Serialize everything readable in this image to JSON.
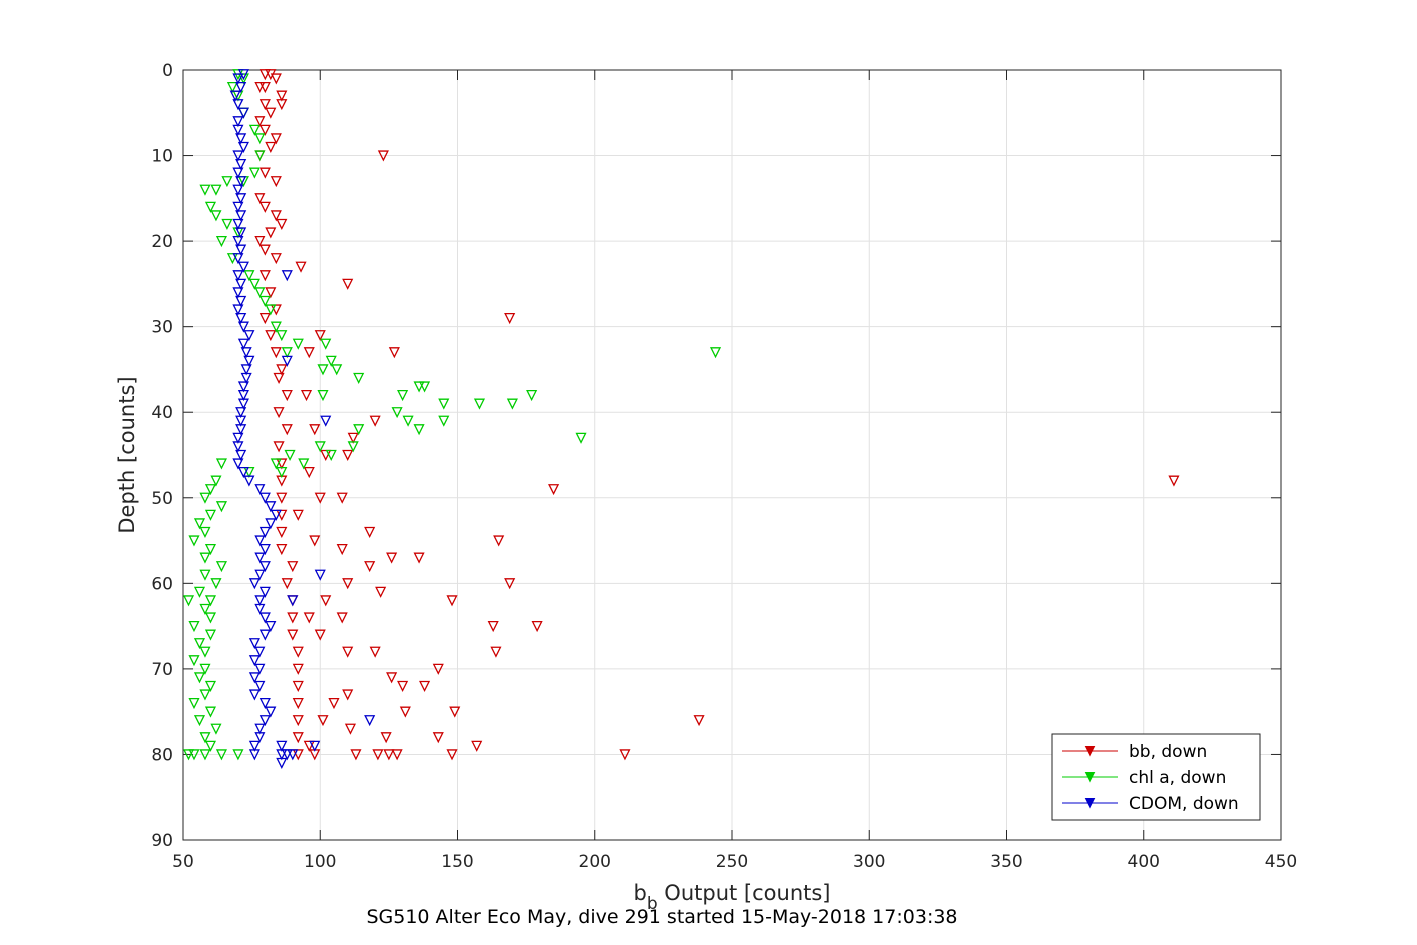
{
  "chart_data": {
    "type": "scatter",
    "xlabel_main": "b",
    "xlabel_sub": "b",
    "xlabel_rest": " Output [counts]",
    "ylabel": "Depth [counts]",
    "title": "SG510 Alter Eco May, dive 291 started 15-May-2018 17:03:38",
    "xlim": [
      50,
      450
    ],
    "ylim": [
      0,
      90
    ],
    "y_reversed": true,
    "xticks": [
      50,
      100,
      150,
      200,
      250,
      300,
      350,
      400,
      450
    ],
    "yticks": [
      0,
      10,
      20,
      30,
      40,
      50,
      60,
      70,
      80,
      90
    ],
    "grid": true,
    "legend_position": "bottom-right",
    "marker": "downward-triangle",
    "series": [
      {
        "name": "bb, down",
        "color": "#cc0000",
        "points": [
          [
            80,
            0.5
          ],
          [
            82,
            0.5
          ],
          [
            84,
            1
          ],
          [
            80,
            2
          ],
          [
            86,
            3
          ],
          [
            78,
            2
          ],
          [
            80,
            4
          ],
          [
            82,
            5
          ],
          [
            86,
            4
          ],
          [
            78,
            6
          ],
          [
            80,
            7
          ],
          [
            84,
            8
          ],
          [
            82,
            9
          ],
          [
            78,
            10
          ],
          [
            80,
            12
          ],
          [
            84,
            13
          ],
          [
            78,
            15
          ],
          [
            80,
            16
          ],
          [
            84,
            17
          ],
          [
            86,
            18
          ],
          [
            82,
            19
          ],
          [
            78,
            20
          ],
          [
            80,
            21
          ],
          [
            84,
            22
          ],
          [
            80,
            24
          ],
          [
            82,
            26
          ],
          [
            84,
            28
          ],
          [
            80,
            29
          ],
          [
            82,
            31
          ],
          [
            84,
            33
          ],
          [
            86,
            35
          ],
          [
            85,
            36
          ],
          [
            88,
            38
          ],
          [
            85,
            40
          ],
          [
            88,
            42
          ],
          [
            85,
            44
          ],
          [
            86,
            46
          ],
          [
            86,
            48
          ],
          [
            86,
            50
          ],
          [
            86,
            52
          ],
          [
            86,
            54
          ],
          [
            86,
            56
          ],
          [
            90,
            58
          ],
          [
            88,
            60
          ],
          [
            90,
            62
          ],
          [
            90,
            64
          ],
          [
            90,
            66
          ],
          [
            92,
            68
          ],
          [
            92,
            70
          ],
          [
            92,
            72
          ],
          [
            92,
            74
          ],
          [
            92,
            76
          ],
          [
            92,
            78
          ],
          [
            92,
            80
          ],
          [
            123,
            10
          ],
          [
            93,
            23
          ],
          [
            110,
            25
          ],
          [
            169,
            29
          ],
          [
            127,
            33
          ],
          [
            100,
            31
          ],
          [
            96,
            33
          ],
          [
            95,
            38
          ],
          [
            98,
            42
          ],
          [
            102,
            45
          ],
          [
            96,
            47
          ],
          [
            110,
            45
          ],
          [
            112,
            43
          ],
          [
            120,
            41
          ],
          [
            100,
            50
          ],
          [
            108,
            50
          ],
          [
            92,
            52
          ],
          [
            98,
            55
          ],
          [
            108,
            56
          ],
          [
            118,
            54
          ],
          [
            126,
            57
          ],
          [
            136,
            57
          ],
          [
            118,
            58
          ],
          [
            110,
            60
          ],
          [
            102,
            62
          ],
          [
            96,
            64
          ],
          [
            108,
            64
          ],
          [
            122,
            61
          ],
          [
            148,
            62
          ],
          [
            165,
            55
          ],
          [
            185,
            49
          ],
          [
            169,
            60
          ],
          [
            163,
            65
          ],
          [
            179,
            65
          ],
          [
            164,
            68
          ],
          [
            143,
            70
          ],
          [
            138,
            72
          ],
          [
            130,
            72
          ],
          [
            126,
            71
          ],
          [
            120,
            68
          ],
          [
            110,
            68
          ],
          [
            100,
            66
          ],
          [
            110,
            73
          ],
          [
            105,
            74
          ],
          [
            101,
            76
          ],
          [
            111,
            77
          ],
          [
            124,
            78
          ],
          [
            143,
            78
          ],
          [
            157,
            79
          ],
          [
            128,
            80
          ],
          [
            125,
            80
          ],
          [
            121,
            80
          ],
          [
            113,
            80
          ],
          [
            98,
            80
          ],
          [
            96,
            79
          ],
          [
            149,
            75
          ],
          [
            131,
            75
          ],
          [
            148,
            80
          ],
          [
            211,
            80
          ],
          [
            238,
            76
          ],
          [
            411,
            48
          ]
        ]
      },
      {
        "name": "chl a, down",
        "color": "#00cc00",
        "points": [
          [
            70,
            0.5
          ],
          [
            72,
            1
          ],
          [
            68,
            2
          ],
          [
            70,
            3
          ],
          [
            72,
            5
          ],
          [
            76,
            7
          ],
          [
            78,
            8
          ],
          [
            78,
            10
          ],
          [
            76,
            12
          ],
          [
            72,
            13
          ],
          [
            66,
            13
          ],
          [
            62,
            14
          ],
          [
            58,
            14
          ],
          [
            60,
            16
          ],
          [
            62,
            17
          ],
          [
            66,
            18
          ],
          [
            70,
            19
          ],
          [
            64,
            20
          ],
          [
            68,
            22
          ],
          [
            74,
            24
          ],
          [
            76,
            25
          ],
          [
            78,
            26
          ],
          [
            80,
            27
          ],
          [
            82,
            28
          ],
          [
            84,
            30
          ],
          [
            86,
            31
          ],
          [
            88,
            33
          ],
          [
            92,
            32
          ],
          [
            102,
            32
          ],
          [
            104,
            34
          ],
          [
            106,
            35
          ],
          [
            101,
            35
          ],
          [
            101,
            38
          ],
          [
            114,
            36
          ],
          [
            130,
            38
          ],
          [
            136,
            37
          ],
          [
            138,
            37
          ],
          [
            145,
            39
          ],
          [
            158,
            39
          ],
          [
            170,
            39
          ],
          [
            177,
            38
          ],
          [
            128,
            40
          ],
          [
            132,
            41
          ],
          [
            136,
            42
          ],
          [
            145,
            41
          ],
          [
            114,
            42
          ],
          [
            112,
            44
          ],
          [
            104,
            45
          ],
          [
            100,
            44
          ],
          [
            94,
            46
          ],
          [
            89,
            45
          ],
          [
            86,
            47
          ],
          [
            84,
            46
          ],
          [
            74,
            47
          ],
          [
            64,
            46
          ],
          [
            62,
            48
          ],
          [
            60,
            49
          ],
          [
            58,
            50
          ],
          [
            64,
            51
          ],
          [
            60,
            52
          ],
          [
            56,
            53
          ],
          [
            58,
            54
          ],
          [
            54,
            55
          ],
          [
            60,
            56
          ],
          [
            58,
            57
          ],
          [
            64,
            58
          ],
          [
            58,
            59
          ],
          [
            62,
            60
          ],
          [
            56,
            61
          ],
          [
            60,
            62
          ],
          [
            52,
            62
          ],
          [
            58,
            63
          ],
          [
            60,
            64
          ],
          [
            54,
            65
          ],
          [
            60,
            66
          ],
          [
            56,
            67
          ],
          [
            58,
            68
          ],
          [
            54,
            69
          ],
          [
            58,
            70
          ],
          [
            56,
            71
          ],
          [
            60,
            72
          ],
          [
            58,
            73
          ],
          [
            54,
            74
          ],
          [
            60,
            75
          ],
          [
            56,
            76
          ],
          [
            62,
            77
          ],
          [
            58,
            78
          ],
          [
            60,
            79
          ],
          [
            64,
            80
          ],
          [
            54,
            80
          ],
          [
            52,
            80
          ],
          [
            58,
            80
          ],
          [
            70,
            80
          ],
          [
            244,
            33
          ],
          [
            195,
            43
          ]
        ]
      },
      {
        "name": "CDOM, down",
        "color": "#0000cc",
        "points": [
          [
            72,
            0.5
          ],
          [
            70,
            1
          ],
          [
            71,
            2
          ],
          [
            69,
            3
          ],
          [
            70,
            4
          ],
          [
            72,
            5
          ],
          [
            70,
            6
          ],
          [
            70,
            7
          ],
          [
            71,
            8
          ],
          [
            72,
            9
          ],
          [
            70,
            10
          ],
          [
            71,
            11
          ],
          [
            70,
            12
          ],
          [
            71,
            13
          ],
          [
            70,
            14
          ],
          [
            71,
            15
          ],
          [
            70,
            16
          ],
          [
            71,
            17
          ],
          [
            70,
            18
          ],
          [
            71,
            19
          ],
          [
            70,
            20
          ],
          [
            71,
            21
          ],
          [
            70,
            22
          ],
          [
            72,
            23
          ],
          [
            70,
            24
          ],
          [
            71,
            25
          ],
          [
            70,
            26
          ],
          [
            71,
            27
          ],
          [
            70,
            28
          ],
          [
            71,
            29
          ],
          [
            72,
            30
          ],
          [
            74,
            31
          ],
          [
            72,
            32
          ],
          [
            73,
            33
          ],
          [
            74,
            34
          ],
          [
            73,
            35
          ],
          [
            73,
            36
          ],
          [
            72,
            37
          ],
          [
            72,
            38
          ],
          [
            72,
            39
          ],
          [
            71,
            40
          ],
          [
            71,
            41
          ],
          [
            71,
            42
          ],
          [
            70,
            43
          ],
          [
            70,
            44
          ],
          [
            71,
            45
          ],
          [
            70,
            46
          ],
          [
            72,
            47
          ],
          [
            74,
            48
          ],
          [
            78,
            49
          ],
          [
            80,
            50
          ],
          [
            82,
            51
          ],
          [
            84,
            52
          ],
          [
            82,
            53
          ],
          [
            80,
            54
          ],
          [
            78,
            55
          ],
          [
            80,
            56
          ],
          [
            78,
            57
          ],
          [
            80,
            58
          ],
          [
            78,
            59
          ],
          [
            76,
            60
          ],
          [
            80,
            61
          ],
          [
            78,
            62
          ],
          [
            78,
            63
          ],
          [
            80,
            64
          ],
          [
            82,
            65
          ],
          [
            80,
            66
          ],
          [
            76,
            67
          ],
          [
            78,
            68
          ],
          [
            76,
            69
          ],
          [
            78,
            70
          ],
          [
            76,
            71
          ],
          [
            78,
            72
          ],
          [
            76,
            73
          ],
          [
            80,
            74
          ],
          [
            82,
            75
          ],
          [
            80,
            76
          ],
          [
            78,
            77
          ],
          [
            78,
            78
          ],
          [
            76,
            79
          ],
          [
            76,
            80
          ],
          [
            86,
            80
          ],
          [
            88,
            80
          ],
          [
            90,
            80
          ],
          [
            102,
            41
          ],
          [
            88,
            24
          ],
          [
            88,
            34
          ],
          [
            100,
            59
          ],
          [
            90,
            62
          ],
          [
            98,
            79
          ],
          [
            118,
            76
          ],
          [
            86,
            79
          ],
          [
            86,
            81
          ]
        ]
      }
    ]
  }
}
